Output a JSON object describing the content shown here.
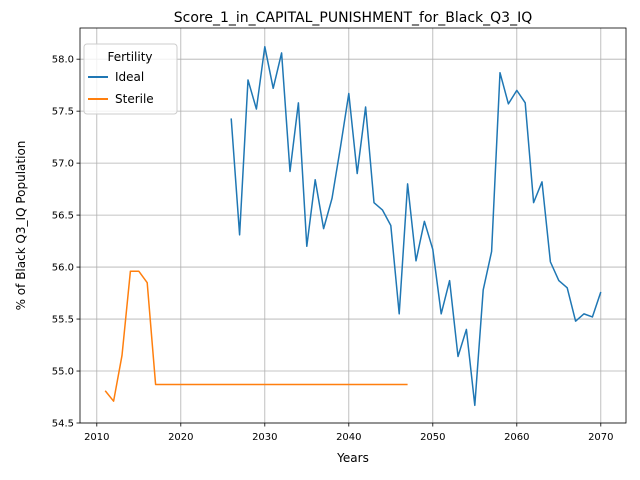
{
  "chart_data": {
    "type": "line",
    "title": "Score_1_in_CAPITAL_PUNISHMENT_for_Black_Q3_IQ",
    "xlabel": "Years",
    "ylabel": "% of Black Q3_IQ Population",
    "xlim": [
      2008,
      2073
    ],
    "ylim": [
      54.5,
      58.3
    ],
    "xticks": [
      2010,
      2020,
      2030,
      2040,
      2050,
      2060,
      2070
    ],
    "yticks": [
      54.5,
      55.0,
      55.5,
      56.0,
      56.5,
      57.0,
      57.5,
      58.0
    ],
    "ytick_labels": [
      "54.5",
      "55.0",
      "55.5",
      "56.0",
      "56.5",
      "57.0",
      "57.5",
      "58.0"
    ],
    "grid": true,
    "legend": {
      "title": "Fertility",
      "position": "upper-left"
    },
    "series": [
      {
        "name": "Ideal",
        "color": "#1f77b4",
        "x": [
          2026,
          2027,
          2028,
          2029,
          2030,
          2031,
          2032,
          2033,
          2034,
          2035,
          2036,
          2037,
          2038,
          2039,
          2040,
          2041,
          2042,
          2043,
          2044,
          2045,
          2046,
          2047,
          2048,
          2049,
          2050,
          2051,
          2052,
          2053,
          2054,
          2055,
          2056,
          2057,
          2058,
          2059,
          2060,
          2061,
          2062,
          2063,
          2064,
          2065,
          2066,
          2067,
          2068,
          2069,
          2070
        ],
        "y": [
          57.43,
          56.31,
          57.8,
          57.52,
          58.12,
          57.72,
          58.06,
          56.92,
          57.58,
          56.2,
          56.84,
          56.37,
          56.66,
          57.15,
          57.67,
          56.9,
          57.54,
          56.62,
          56.55,
          56.4,
          55.55,
          56.8,
          56.06,
          56.44,
          56.17,
          55.55,
          55.87,
          55.14,
          55.4,
          54.67,
          55.78,
          56.15,
          57.87,
          57.57,
          57.7,
          57.58,
          56.62,
          56.82,
          56.05,
          55.87,
          55.8,
          55.48,
          55.55,
          55.52,
          55.76
        ]
      },
      {
        "name": "Sterile",
        "color": "#ff7f0e",
        "x": [
          2011,
          2012,
          2013,
          2014,
          2015,
          2016,
          2017,
          2018,
          2019,
          2020,
          2021,
          2022,
          2023,
          2024,
          2025,
          2026,
          2027,
          2028,
          2029,
          2030,
          2031,
          2032,
          2033,
          2034,
          2035,
          2036,
          2037,
          2038,
          2039,
          2040,
          2041,
          2042,
          2043,
          2044,
          2045,
          2046,
          2047
        ],
        "y": [
          54.81,
          54.71,
          55.15,
          55.96,
          55.96,
          55.85,
          54.87,
          54.87,
          54.87,
          54.87,
          54.87,
          54.87,
          54.87,
          54.87,
          54.87,
          54.87,
          54.87,
          54.87,
          54.87,
          54.87,
          54.87,
          54.87,
          54.87,
          54.87,
          54.87,
          54.87,
          54.87,
          54.87,
          54.87,
          54.87,
          54.87,
          54.87,
          54.87,
          54.87,
          54.87,
          54.87,
          54.87
        ]
      }
    ]
  }
}
